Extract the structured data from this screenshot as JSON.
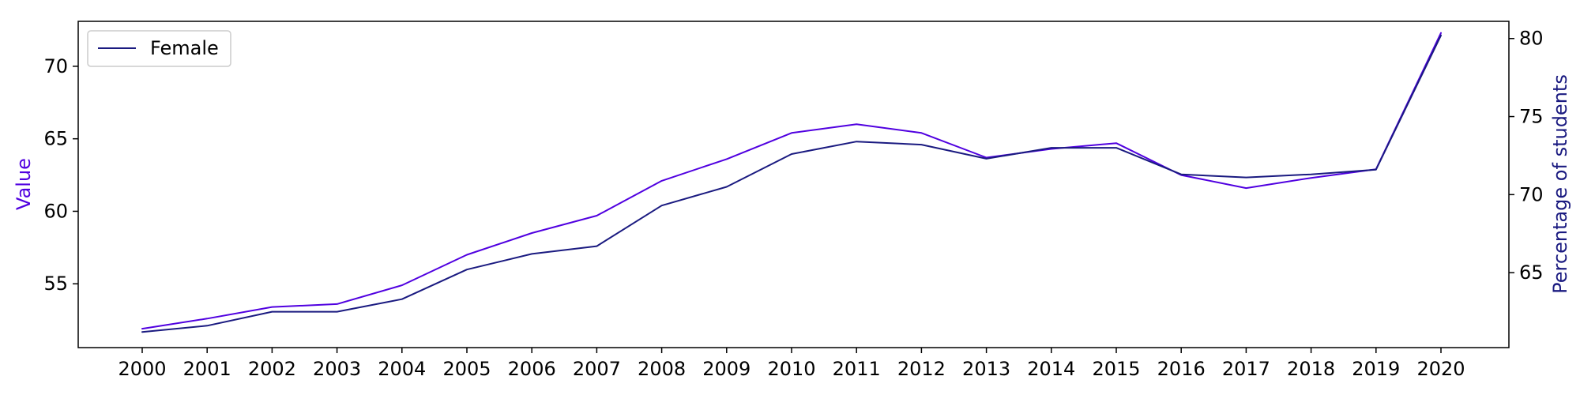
{
  "chart_data": {
    "type": "line",
    "title": "",
    "xlabel": "",
    "x": [
      "2000",
      "2001",
      "2002",
      "2003",
      "2004",
      "2005",
      "2006",
      "2007",
      "2008",
      "2009",
      "2010",
      "2011",
      "2012",
      "2013",
      "2014",
      "2015",
      "2016",
      "2017",
      "2018",
      "2019",
      "2020"
    ],
    "left_axis": {
      "label": "Value",
      "label_color": "#5000e0",
      "ylim": [
        50.6,
        73.1
      ],
      "ticks": [
        "55",
        "60",
        "65",
        "70"
      ],
      "tick_values": [
        55,
        60,
        65,
        70
      ]
    },
    "right_axis": {
      "label": "Percentage of students",
      "label_color": "#1a1a80",
      "ylim": [
        60.2,
        81.1
      ],
      "ticks": [
        "65",
        "70",
        "75",
        "80"
      ],
      "tick_values": [
        65,
        70,
        75,
        80
      ]
    },
    "series": [
      {
        "name": "",
        "axis": "left",
        "color": "#5000e0",
        "values": [
          51.9,
          52.6,
          53.4,
          53.6,
          54.9,
          57.0,
          58.5,
          59.7,
          62.1,
          63.6,
          65.4,
          66.0,
          65.4,
          63.7,
          64.3,
          64.7,
          62.5,
          61.6,
          62.3,
          62.9,
          72.3
        ]
      },
      {
        "name": "Female",
        "axis": "right",
        "color": "#1a1a80",
        "values": [
          61.2,
          61.6,
          62.5,
          62.5,
          63.3,
          65.2,
          66.2,
          66.7,
          69.3,
          70.5,
          72.6,
          73.4,
          73.2,
          72.3,
          73.0,
          73.0,
          71.3,
          71.1,
          71.3,
          71.6,
          80.2
        ]
      }
    ],
    "legend": {
      "entries": [
        "Female"
      ],
      "position": "top-left"
    },
    "grid": false
  }
}
